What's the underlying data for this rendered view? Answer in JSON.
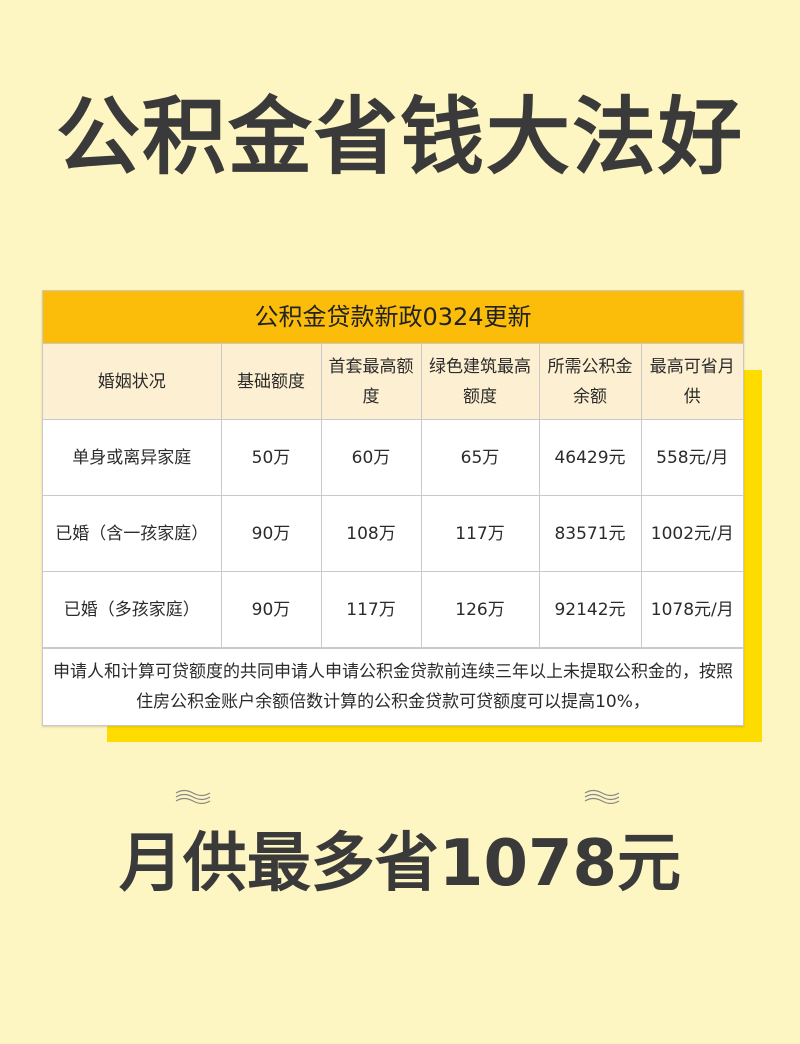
{
  "title": "公积金省钱大法好",
  "table": {
    "caption": "公积金贷款新政0324更新",
    "headers": [
      "婚姻状况",
      "基础额度",
      "首套最高额度",
      "绿色建筑最高额度",
      "所需公积金余额",
      "最高可省月供"
    ],
    "rows": [
      [
        "单身或离异家庭",
        "50万",
        "60万",
        "65万",
        "46429元",
        "558元/月"
      ],
      [
        "已婚（含一孩家庭）",
        "90万",
        "108万",
        "117万",
        "83571元",
        "1002元/月"
      ],
      [
        "已婚（多孩家庭）",
        "90万",
        "117万",
        "126万",
        "92142元",
        "1078元/月"
      ]
    ],
    "note": "申请人和计算可贷额度的共同申请人申请公积金贷款前连续三年以上未提取公积金的，按照住房公积金账户余额倍数计算的公积金贷款可贷额度可以提高10%，"
  },
  "bottom_text": "月供最多省1078元",
  "colors": {
    "background": "#fdf5c2",
    "caption": "#fbbd0a",
    "shadow": "#ffdc00",
    "header_row": "#fdf0d2"
  }
}
